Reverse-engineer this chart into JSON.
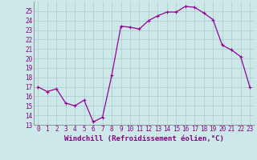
{
  "x": [
    0,
    1,
    2,
    3,
    4,
    5,
    6,
    7,
    8,
    9,
    10,
    11,
    12,
    13,
    14,
    15,
    16,
    17,
    18,
    19,
    20,
    21,
    22,
    23
  ],
  "y": [
    17,
    16.5,
    16.8,
    15.3,
    15.0,
    15.6,
    13.3,
    13.8,
    18.2,
    23.4,
    23.3,
    23.1,
    24.0,
    24.5,
    24.9,
    24.9,
    25.5,
    25.4,
    24.8,
    24.1,
    21.4,
    20.9,
    20.2,
    17.0
  ],
  "line_color": "#990099",
  "marker": "+",
  "marker_size": 3,
  "marker_linewidth": 0.8,
  "bg_color": "#cce8e8",
  "grid_color": "#aacccc",
  "xlabel": "Windchill (Refroidissement éolien,°C)",
  "ylim": [
    13,
    26
  ],
  "xlim_min": -0.5,
  "xlim_max": 23.5,
  "yticks": [
    13,
    14,
    15,
    16,
    17,
    18,
    19,
    20,
    21,
    22,
    23,
    24,
    25
  ],
  "xticks": [
    0,
    1,
    2,
    3,
    4,
    5,
    6,
    7,
    8,
    9,
    10,
    11,
    12,
    13,
    14,
    15,
    16,
    17,
    18,
    19,
    20,
    21,
    22,
    23
  ],
  "xtick_labels": [
    "0",
    "1",
    "2",
    "3",
    "4",
    "5",
    "6",
    "7",
    "8",
    "9",
    "10",
    "11",
    "12",
    "13",
    "14",
    "15",
    "16",
    "17",
    "18",
    "19",
    "20",
    "21",
    "22",
    "23"
  ],
  "font_color": "#880088",
  "tick_fontsize": 5.5,
  "xlabel_fontsize": 6.5,
  "linewidth": 0.9
}
